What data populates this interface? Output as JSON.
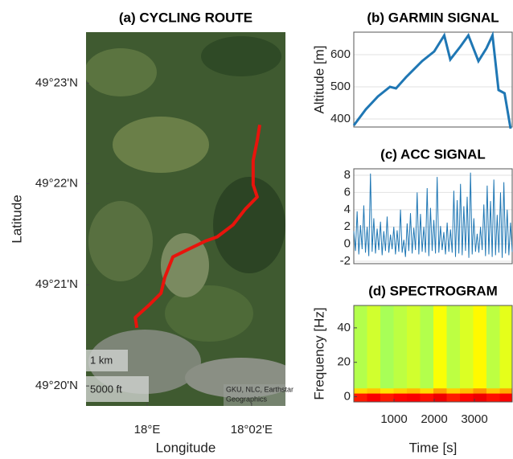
{
  "chart_data": [
    {
      "type": "map",
      "title": "(a) CYCLING ROUTE",
      "xlabel": "Longitude",
      "ylabel": "Latitude",
      "xlim": [
        17.9805,
        18.0441
      ],
      "ylim": [
        49.33,
        49.3917
      ],
      "xticks": [
        {
          "value": 18.0,
          "label": "18°E"
        },
        {
          "value": 18.0333,
          "label": "18°02'E"
        }
      ],
      "yticks": [
        {
          "value": 49.3333,
          "label": "49°20'N"
        },
        {
          "value": 49.35,
          "label": "49°21'N"
        },
        {
          "value": 49.3667,
          "label": "49°22'N"
        },
        {
          "value": 49.3833,
          "label": "49°23'N"
        }
      ],
      "route": {
        "color": "#e8140c",
        "lon": [
          17.9967,
          17.9962,
          18.0005,
          18.0044,
          18.0056,
          18.0082,
          18.0133,
          18.0185,
          18.0223,
          18.0274,
          18.0313,
          18.0351,
          18.0338,
          18.0338,
          18.0351,
          18.0359
        ],
        "lat": [
          49.3429,
          49.3446,
          49.3466,
          49.3486,
          49.3512,
          49.3546,
          49.3559,
          49.3572,
          49.3579,
          49.3599,
          49.3625,
          49.3645,
          49.3665,
          49.3705,
          49.3738,
          49.3764
        ]
      },
      "scale_labels": [
        "1 km",
        "5000 ft"
      ],
      "attribution": [
        "GKU, NLC, Earthstar",
        "Geographics"
      ]
    },
    {
      "type": "line",
      "title": "(b) GARMIN SIGNAL",
      "ylabel": "Altitude [m]",
      "color": "#1f77b4",
      "grid": true,
      "xlim": [
        0,
        3940
      ],
      "ylim": [
        375,
        670
      ],
      "yticks": [
        400,
        500,
        600
      ],
      "x": [
        0,
        300,
        600,
        900,
        1050,
        1300,
        1700,
        2000,
        2250,
        2400,
        2650,
        2850,
        3100,
        3300,
        3450,
        3600,
        3750,
        3900
      ],
      "values": [
        380,
        430,
        470,
        500,
        495,
        530,
        580,
        610,
        660,
        585,
        625,
        660,
        580,
        620,
        660,
        490,
        480,
        370
      ]
    },
    {
      "type": "signal",
      "title": "(c) ACC SIGNAL",
      "color": "#1f77b4",
      "grid": true,
      "ylim": [
        -2.28,
        8.75
      ],
      "yticks": [
        -2,
        0,
        2,
        4,
        6,
        8
      ],
      "values": [
        1.5,
        -0.8,
        3.8,
        -1.2,
        2.2,
        -0.6,
        4.5,
        -1.0,
        2.0,
        -1.4,
        8.2,
        -0.9,
        3.0,
        -1.1,
        1.8,
        -0.7,
        2.6,
        -1.3,
        1.5,
        -0.8,
        3.2,
        -1.0,
        1.1,
        -0.6,
        2.0,
        -1.2,
        1.6,
        -0.9,
        4.0,
        -1.0,
        0.5,
        -1.5,
        2.4,
        -0.8,
        3.6,
        -1.1,
        1.9,
        -0.7,
        6.0,
        -1.2,
        3.5,
        -0.9,
        2.0,
        -1.0,
        6.5,
        -1.4,
        4.2,
        -0.8,
        2.8,
        -1.1,
        7.8,
        -1.0,
        2.1,
        -0.7,
        1.4,
        -1.2,
        2.5,
        -0.9,
        1.7,
        -1.0,
        6.2,
        -1.5,
        5.1,
        -1.1,
        7.0,
        -1.3,
        4.4,
        -0.8,
        5.5,
        -1.6,
        8.3,
        -1.2,
        3.0,
        -0.9,
        1.2,
        -1.0,
        2.0,
        -0.7,
        4.6,
        -1.4,
        6.8,
        -1.2,
        5.0,
        -1.5,
        7.5,
        -1.3,
        3.4,
        -1.0,
        6.0,
        -1.6,
        7.2,
        -1.1,
        4.0,
        -1.3,
        2.5,
        -0.9
      ]
    },
    {
      "type": "heatmap",
      "title": "(d) SPECTROGRAM",
      "xlabel": "Time [s]",
      "ylabel": "Frequency [Hz]",
      "xlim": [
        0,
        3940
      ],
      "ylim": [
        -3,
        53
      ],
      "xticks": [
        1000,
        2000,
        3000
      ],
      "yticks": [
        0,
        20,
        40
      ],
      "clim": [
        0,
        1
      ],
      "x_bins": [
        0,
        330,
        660,
        990,
        1320,
        1650,
        1980,
        2310,
        2640,
        2970,
        3300,
        3630,
        3940
      ],
      "y_bins": [
        -3,
        2,
        5,
        53
      ],
      "z": [
        [
          0.85,
          0.88,
          0.85,
          0.87,
          0.88,
          0.86,
          0.89,
          0.85,
          0.87,
          0.89,
          0.86,
          0.88
        ],
        [
          0.66,
          0.68,
          0.65,
          0.67,
          0.69,
          0.66,
          0.72,
          0.67,
          0.69,
          0.73,
          0.68,
          0.71
        ],
        [
          0.55,
          0.58,
          0.54,
          0.56,
          0.58,
          0.55,
          0.62,
          0.56,
          0.59,
          0.63,
          0.56,
          0.6
        ]
      ]
    }
  ]
}
